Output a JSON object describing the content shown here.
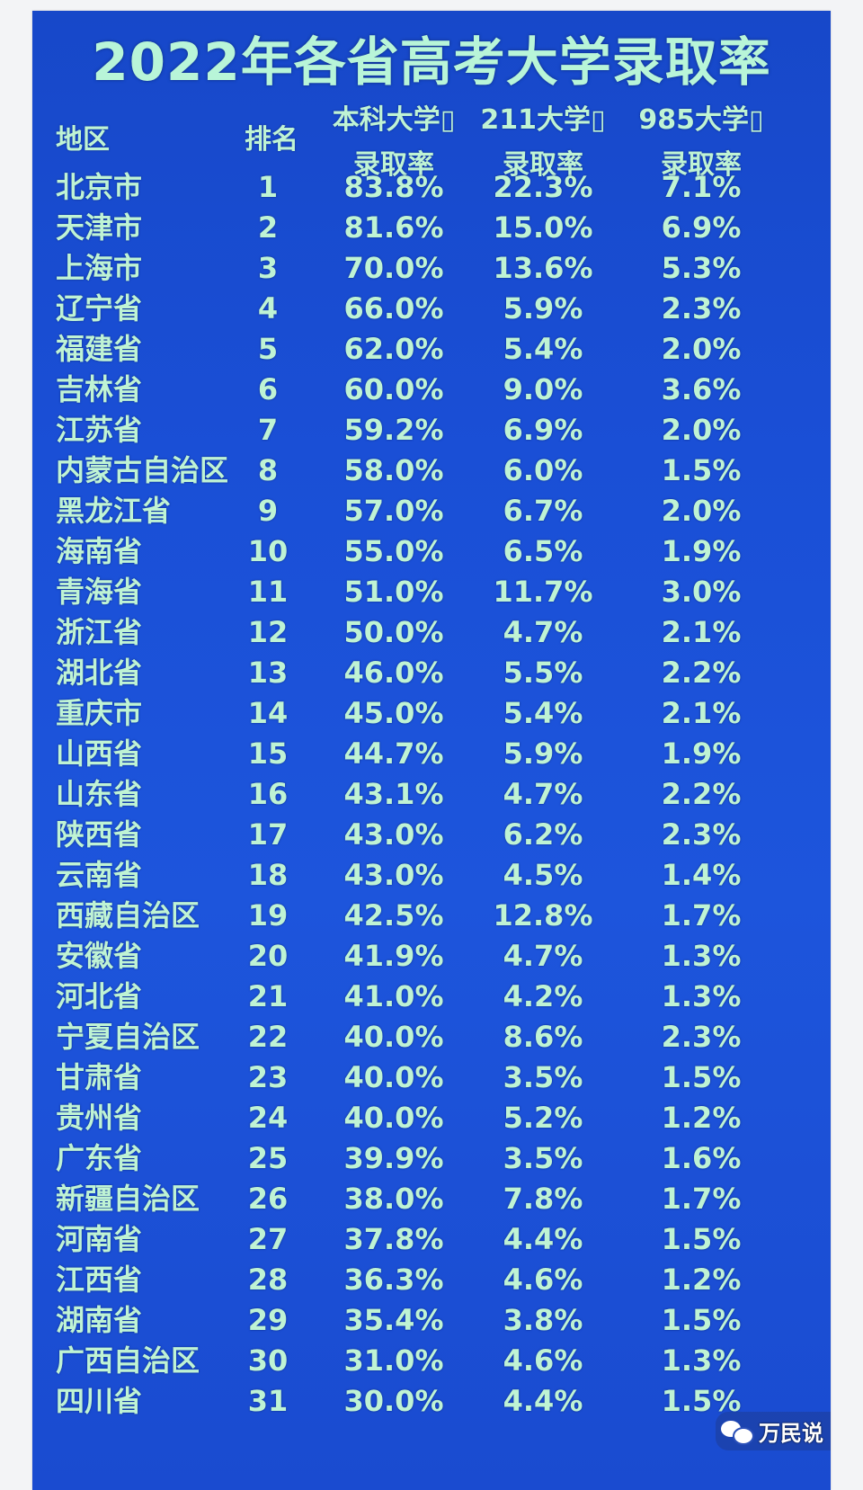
{
  "title": "2022年各省高考大学录取率",
  "headers": {
    "region": "地区",
    "rank": "排名",
    "col1_line1": "本科大学▯",
    "col1_line2": "录取率",
    "col2_line1": "211大学▯",
    "col2_line2": "录取率",
    "col3_line1": "985大学▯",
    "col3_line2": "录取率"
  },
  "rows": [
    {
      "region": "北京市",
      "rank": "1",
      "undergrad": "83.8%",
      "u211": "22.3%",
      "u985": "7.1%"
    },
    {
      "region": "天津市",
      "rank": "2",
      "undergrad": "81.6%",
      "u211": "15.0%",
      "u985": "6.9%"
    },
    {
      "region": "上海市",
      "rank": "3",
      "undergrad": "70.0%",
      "u211": "13.6%",
      "u985": "5.3%"
    },
    {
      "region": "辽宁省",
      "rank": "4",
      "undergrad": "66.0%",
      "u211": "5.9%",
      "u985": "2.3%"
    },
    {
      "region": "福建省",
      "rank": "5",
      "undergrad": "62.0%",
      "u211": "5.4%",
      "u985": "2.0%"
    },
    {
      "region": "吉林省",
      "rank": "6",
      "undergrad": "60.0%",
      "u211": "9.0%",
      "u985": "3.6%"
    },
    {
      "region": "江苏省",
      "rank": "7",
      "undergrad": "59.2%",
      "u211": "6.9%",
      "u985": "2.0%"
    },
    {
      "region": "内蒙古自治区",
      "rank": "8",
      "undergrad": "58.0%",
      "u211": "6.0%",
      "u985": "1.5%"
    },
    {
      "region": "黑龙江省",
      "rank": "9",
      "undergrad": "57.0%",
      "u211": "6.7%",
      "u985": "2.0%"
    },
    {
      "region": "海南省",
      "rank": "10",
      "undergrad": "55.0%",
      "u211": "6.5%",
      "u985": "1.9%"
    },
    {
      "region": "青海省",
      "rank": "11",
      "undergrad": "51.0%",
      "u211": "11.7%",
      "u985": "3.0%"
    },
    {
      "region": "浙江省",
      "rank": "12",
      "undergrad": "50.0%",
      "u211": "4.7%",
      "u985": "2.1%"
    },
    {
      "region": "湖北省",
      "rank": "13",
      "undergrad": "46.0%",
      "u211": "5.5%",
      "u985": "2.2%"
    },
    {
      "region": "重庆市",
      "rank": "14",
      "undergrad": "45.0%",
      "u211": "5.4%",
      "u985": "2.1%"
    },
    {
      "region": "山西省",
      "rank": "15",
      "undergrad": "44.7%",
      "u211": "5.9%",
      "u985": "1.9%"
    },
    {
      "region": "山东省",
      "rank": "16",
      "undergrad": "43.1%",
      "u211": "4.7%",
      "u985": "2.2%"
    },
    {
      "region": "陕西省",
      "rank": "17",
      "undergrad": "43.0%",
      "u211": "6.2%",
      "u985": "2.3%"
    },
    {
      "region": "云南省",
      "rank": "18",
      "undergrad": "43.0%",
      "u211": "4.5%",
      "u985": "1.4%"
    },
    {
      "region": "西藏自治区",
      "rank": "19",
      "undergrad": "42.5%",
      "u211": "12.8%",
      "u985": "1.7%"
    },
    {
      "region": "安徽省",
      "rank": "20",
      "undergrad": "41.9%",
      "u211": "4.7%",
      "u985": "1.3%"
    },
    {
      "region": "河北省",
      "rank": "21",
      "undergrad": "41.0%",
      "u211": "4.2%",
      "u985": "1.3%"
    },
    {
      "region": "宁夏自治区",
      "rank": "22",
      "undergrad": "40.0%",
      "u211": "8.6%",
      "u985": "2.3%"
    },
    {
      "region": "甘肃省",
      "rank": "23",
      "undergrad": "40.0%",
      "u211": "3.5%",
      "u985": "1.5%"
    },
    {
      "region": "贵州省",
      "rank": "24",
      "undergrad": "40.0%",
      "u211": "5.2%",
      "u985": "1.2%"
    },
    {
      "region": "广东省",
      "rank": "25",
      "undergrad": "39.9%",
      "u211": "3.5%",
      "u985": "1.6%"
    },
    {
      "region": "新疆自治区",
      "rank": "26",
      "undergrad": "38.0%",
      "u211": "7.8%",
      "u985": "1.7%"
    },
    {
      "region": "河南省",
      "rank": "27",
      "undergrad": "37.8%",
      "u211": "4.4%",
      "u985": "1.5%"
    },
    {
      "region": "江西省",
      "rank": "28",
      "undergrad": "36.3%",
      "u211": "4.6%",
      "u985": "1.2%"
    },
    {
      "region": "湖南省",
      "rank": "29",
      "undergrad": "35.4%",
      "u211": "3.8%",
      "u985": "1.5%"
    },
    {
      "region": "广西自治区",
      "rank": "30",
      "undergrad": "31.0%",
      "u211": "4.6%",
      "u985": "1.3%"
    },
    {
      "region": "四川省",
      "rank": "31",
      "undergrad": "30.0%",
      "u211": "4.4%",
      "u985": "1.5%"
    }
  ],
  "watermark": {
    "icon": "wechat-icon",
    "text": "万民说"
  }
}
